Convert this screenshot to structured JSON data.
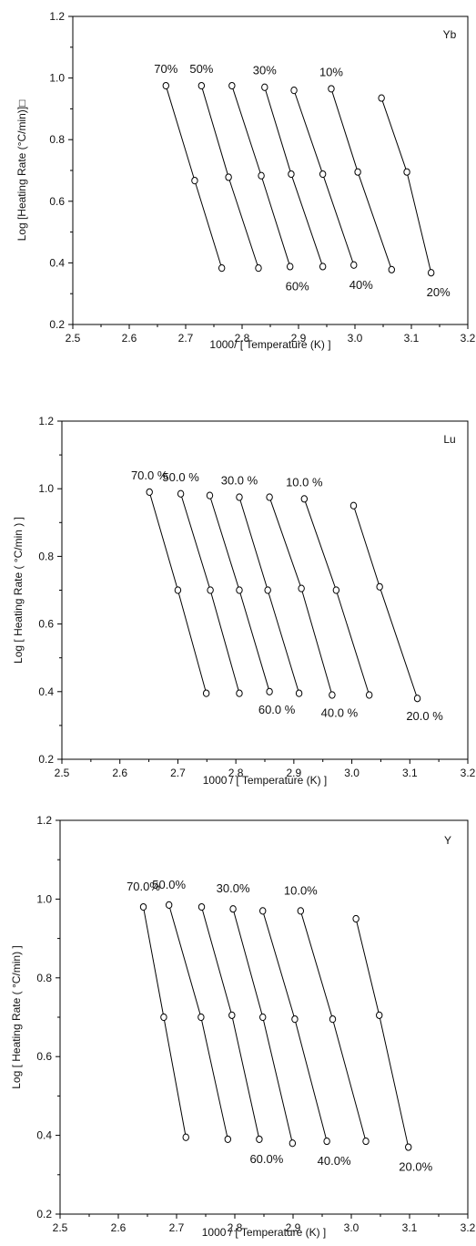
{
  "chart_data": [
    {
      "type": "line",
      "element_label": "Yb",
      "xlabel": "1000/ [ Temperature (K) ]",
      "ylabel": "Log [Heating Rate (°C/min)]□",
      "xlim": [
        2.5,
        3.2
      ],
      "ylim": [
        0.2,
        1.2
      ],
      "xticks": [
        "2.5",
        "2.6",
        "2.7",
        "2.8",
        "2.9",
        "3.0",
        "3.1",
        "3.2"
      ],
      "yticks": [
        "0.2",
        "0.4",
        "0.6",
        "0.8",
        "1.0",
        "1.2"
      ],
      "series": [
        {
          "label_top": "",
          "label_bottom": "20%",
          "x": [
            3.047,
            3.092,
            3.135
          ],
          "y": [
            0.935,
            0.695,
            0.368
          ]
        },
        {
          "label_top": "10%",
          "label_bottom": "",
          "x": [
            2.958,
            3.005,
            3.065
          ],
          "y": [
            0.965,
            0.695,
            0.378
          ]
        },
        {
          "label_top": "",
          "label_bottom": "40%",
          "x": [
            2.892,
            2.943,
            2.998
          ],
          "y": [
            0.96,
            0.688,
            0.393
          ]
        },
        {
          "label_top": "30%",
          "label_bottom": "",
          "x": [
            2.84,
            2.887,
            2.943
          ],
          "y": [
            0.97,
            0.688,
            0.388
          ]
        },
        {
          "label_top": "",
          "label_bottom": "60%",
          "x": [
            2.782,
            2.834,
            2.885
          ],
          "y": [
            0.975,
            0.683,
            0.388
          ]
        },
        {
          "label_top": "50%",
          "label_bottom": "",
          "x": [
            2.728,
            2.776,
            2.829
          ],
          "y": [
            0.975,
            0.678,
            0.383
          ]
        },
        {
          "label_top": "70%",
          "label_bottom": "",
          "x": [
            2.665,
            2.716,
            2.764
          ],
          "y": [
            0.975,
            0.667,
            0.383
          ]
        }
      ],
      "label_order_top": [
        "70%",
        "50%",
        "30%",
        "10%"
      ],
      "label_order_bottom": [
        "60%",
        "40%",
        "20%"
      ]
    },
    {
      "type": "line",
      "element_label": "Lu",
      "xlabel": "1000 / [ Temperature (K) ]",
      "ylabel": "Log [ Heating Rate ( °C/min ) ]",
      "xlim": [
        2.5,
        3.2
      ],
      "ylim": [
        0.2,
        1.2
      ],
      "xticks": [
        "2.5",
        "2.6",
        "2.7",
        "2.8",
        "2.9",
        "3.0",
        "3.1",
        "3.2"
      ],
      "yticks": [
        "0.2",
        "0.4",
        "0.6",
        "0.8",
        "1.0",
        "1.2"
      ],
      "series": [
        {
          "label_top": "",
          "label_bottom": "20.0 %",
          "x": [
            3.003,
            3.048,
            3.113
          ],
          "y": [
            0.95,
            0.71,
            0.38
          ]
        },
        {
          "label_top": "10.0 %",
          "label_bottom": "",
          "x": [
            2.918,
            2.973,
            3.03
          ],
          "y": [
            0.97,
            0.7,
            0.39
          ]
        },
        {
          "label_top": "",
          "label_bottom": "40.0 %",
          "x": [
            2.858,
            2.913,
            2.966
          ],
          "y": [
            0.975,
            0.705,
            0.39
          ]
        },
        {
          "label_top": "30.0 %",
          "label_bottom": "",
          "x": [
            2.806,
            2.855,
            2.909
          ],
          "y": [
            0.975,
            0.7,
            0.395
          ]
        },
        {
          "label_top": "",
          "label_bottom": "60.0 %",
          "x": [
            2.755,
            2.806,
            2.858
          ],
          "y": [
            0.98,
            0.7,
            0.4
          ]
        },
        {
          "label_top": "50.0 %",
          "label_bottom": "",
          "x": [
            2.705,
            2.756,
            2.806
          ],
          "y": [
            0.985,
            0.7,
            0.395
          ]
        },
        {
          "label_top": "70.0 %",
          "label_bottom": "",
          "x": [
            2.651,
            2.7,
            2.749
          ],
          "y": [
            0.99,
            0.7,
            0.395
          ]
        }
      ],
      "label_order_top": [
        "70.0 %",
        "50.0 %",
        "30.0 %",
        "10.0 %"
      ],
      "label_order_bottom": [
        "60.0 %",
        "40.0 %",
        "20.0 %"
      ]
    },
    {
      "type": "line",
      "element_label": "Y",
      "xlabel": "1000 / [ Temperature (K) ]",
      "ylabel": "Log [ Heating Rate ( °C/min) ]",
      "xlim": [
        2.5,
        3.2
      ],
      "ylim": [
        0.2,
        1.2
      ],
      "xticks": [
        "2.5",
        "2.6",
        "2.7",
        "2.8",
        "2.9",
        "3.0",
        "3.1",
        "3.2"
      ],
      "yticks": [
        "0.2",
        "0.4",
        "0.6",
        "0.8",
        "1.0",
        "1.2"
      ],
      "series": [
        {
          "label_top": "",
          "label_bottom": "20.0%",
          "x": [
            3.008,
            3.048,
            3.098
          ],
          "y": [
            0.95,
            0.705,
            0.37
          ]
        },
        {
          "label_top": "10.0%",
          "label_bottom": "",
          "x": [
            2.913,
            2.968,
            3.025
          ],
          "y": [
            0.97,
            0.695,
            0.385
          ]
        },
        {
          "label_top": "",
          "label_bottom": "40.0%",
          "x": [
            2.848,
            2.903,
            2.958
          ],
          "y": [
            0.97,
            0.695,
            0.385
          ]
        },
        {
          "label_top": "30.0%",
          "label_bottom": "",
          "x": [
            2.797,
            2.848,
            2.899
          ],
          "y": [
            0.975,
            0.7,
            0.38
          ]
        },
        {
          "label_top": "",
          "label_bottom": "60.0%",
          "x": [
            2.743,
            2.795,
            2.842
          ],
          "y": [
            0.98,
            0.705,
            0.39
          ]
        },
        {
          "label_top": "50.0%",
          "label_bottom": "",
          "x": [
            2.687,
            2.742,
            2.788
          ],
          "y": [
            0.985,
            0.7,
            0.39
          ]
        },
        {
          "label_top": "70.0%",
          "label_bottom": "",
          "x": [
            2.643,
            2.678,
            2.716
          ],
          "y": [
            0.98,
            0.7,
            0.395
          ]
        }
      ],
      "label_order_top": [
        "70.0%",
        "50.0%",
        "30.0%",
        "10.0%"
      ],
      "label_order_bottom": [
        "60.0%",
        "40.0%",
        "20.0%"
      ]
    }
  ]
}
